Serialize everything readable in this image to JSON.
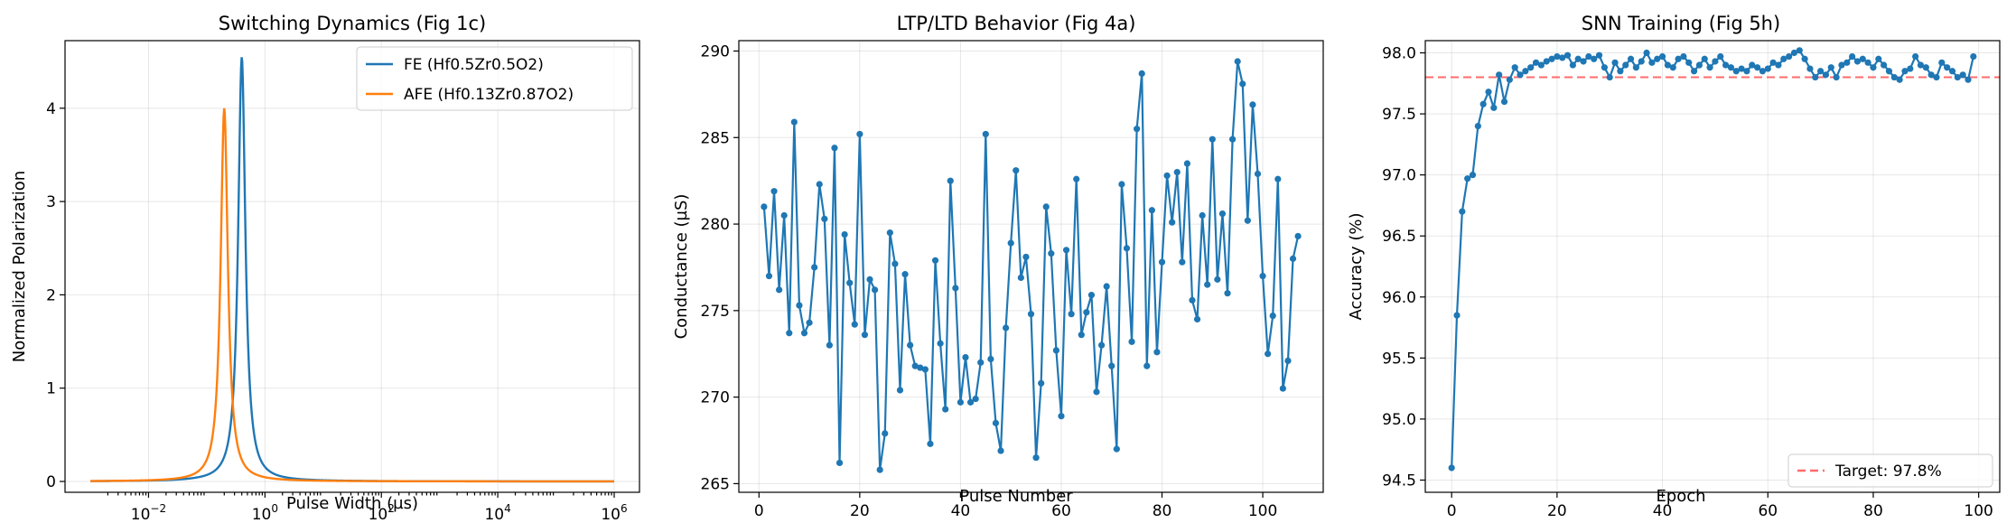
{
  "colors": {
    "fe": "#1f77b4",
    "afe": "#ff7f0e",
    "target": "#ff6b6b",
    "text": "#000000"
  },
  "chart_data": [
    {
      "type": "line",
      "title": "Switching Dynamics (Fig 1c)",
      "xlabel": "Pulse Width (µs)",
      "ylabel": "Normalized Polarization",
      "xscale": "log",
      "xlim": [
        0.001,
        1000000
      ],
      "ylim": [
        0,
        4.55
      ],
      "xtick_bases": [
        "10",
        "10",
        "10",
        "10",
        "10"
      ],
      "xtick_exps": [
        "−2",
        "0",
        "2",
        "4",
        "6"
      ],
      "yticks": [
        "0",
        "1",
        "2",
        "3",
        "4"
      ],
      "grid": true,
      "legend_position": "upper right",
      "series": [
        {
          "name": "FE (Hf0.5Zr0.5O2)",
          "color": "#1f77b4",
          "peak_x": 0.4,
          "peak_y": 4.55,
          "shape": "lorentzian-log"
        },
        {
          "name": "AFE (Hf0.13Zr0.87O2)",
          "color": "#ff7f0e",
          "peak_x": 0.2,
          "peak_y": 4.0,
          "shape": "lorentzian-log"
        }
      ]
    },
    {
      "type": "line",
      "title": "LTP/LTD Behavior (Fig 4a)",
      "xlabel": "Pulse Number",
      "ylabel": "Conductance (µS)",
      "xlim": [
        -4,
        112
      ],
      "ylim": [
        264.5,
        290.6
      ],
      "xticks": [
        "0",
        "20",
        "40",
        "60",
        "80",
        "100"
      ],
      "yticks": [
        "265",
        "270",
        "275",
        "280",
        "285",
        "290"
      ],
      "grid": true,
      "series": [
        {
          "name": "",
          "color": "#1f77b4",
          "x": [
            1,
            2,
            3,
            4,
            5,
            6,
            7,
            8,
            9,
            10,
            11,
            12,
            13,
            14,
            15,
            16,
            17,
            18,
            19,
            20,
            21,
            22,
            23,
            24,
            25,
            26,
            27,
            28,
            29,
            30,
            31,
            32,
            33,
            34,
            35,
            36,
            37,
            38,
            39,
            40,
            41,
            42,
            43,
            44,
            45,
            46,
            47,
            48,
            49,
            50,
            51,
            52,
            53,
            54,
            55,
            56,
            57,
            58,
            59,
            60,
            61,
            62,
            63,
            64,
            65,
            66,
            67,
            68,
            69,
            70,
            71,
            72,
            73,
            74,
            75,
            76,
            77,
            78,
            79,
            80,
            81,
            82,
            83,
            84,
            85,
            86,
            87,
            88,
            89,
            90,
            91,
            92,
            93,
            94,
            95,
            96,
            97,
            98,
            99,
            100,
            101,
            102,
            103,
            104,
            105,
            106,
            107
          ],
          "y": [
            281.0,
            277.0,
            281.9,
            276.2,
            280.5,
            273.7,
            285.9,
            275.3,
            273.7,
            274.3,
            277.5,
            282.3,
            280.3,
            273.0,
            284.4,
            266.2,
            279.4,
            276.6,
            274.2,
            285.2,
            273.6,
            276.8,
            276.2,
            265.8,
            267.9,
            279.5,
            277.7,
            270.4,
            277.1,
            273.0,
            271.8,
            271.7,
            271.6,
            267.3,
            277.9,
            273.1,
            269.3,
            282.5,
            276.3,
            269.7,
            272.3,
            269.7,
            269.9,
            272.0,
            285.2,
            272.2,
            268.5,
            266.9,
            274.0,
            278.9,
            283.1,
            276.9,
            278.1,
            274.8,
            266.5,
            270.8,
            281.0,
            278.3,
            272.7,
            268.9,
            278.5,
            274.8,
            282.6,
            273.6,
            274.9,
            275.9,
            270.3,
            273.0,
            276.4,
            271.8,
            267.0,
            282.3,
            278.6,
            273.2,
            285.5,
            288.7,
            271.8,
            280.8,
            272.6,
            277.8,
            282.8,
            280.1,
            283.0,
            277.8,
            283.5,
            275.6,
            274.5,
            280.5,
            276.5,
            284.9,
            276.8,
            280.6,
            276.0,
            284.9,
            289.4,
            288.1,
            280.2,
            286.9,
            282.9,
            277.0,
            272.5,
            274.7,
            282.6,
            270.5,
            272.1,
            278.0,
            279.3
          ]
        }
      ]
    },
    {
      "type": "line",
      "title": "SNN Training (Fig 5h)",
      "xlabel": "Epoch",
      "ylabel": "Accuracy (%)",
      "xlim": [
        -5,
        104
      ],
      "ylim": [
        94.4,
        98.1
      ],
      "xticks": [
        "0",
        "20",
        "40",
        "60",
        "80",
        "100"
      ],
      "yticks": [
        "94.5",
        "95.0",
        "95.5",
        "96.0",
        "96.5",
        "97.0",
        "97.5",
        "98.0"
      ],
      "grid": true,
      "legend_position": "lower right",
      "target": {
        "value": 97.8,
        "label": "Target: 97.8%"
      },
      "series": [
        {
          "name": "",
          "color": "#1f77b4",
          "x": [
            0,
            1,
            2,
            3,
            4,
            5,
            6,
            7,
            8,
            9,
            10,
            11,
            12,
            13,
            14,
            15,
            16,
            17,
            18,
            19,
            20,
            21,
            22,
            23,
            24,
            25,
            26,
            27,
            28,
            29,
            30,
            31,
            32,
            33,
            34,
            35,
            36,
            37,
            38,
            39,
            40,
            41,
            42,
            43,
            44,
            45,
            46,
            47,
            48,
            49,
            50,
            51,
            52,
            53,
            54,
            55,
            56,
            57,
            58,
            59,
            60,
            61,
            62,
            63,
            64,
            65,
            66,
            67,
            68,
            69,
            70,
            71,
            72,
            73,
            74,
            75,
            76,
            77,
            78,
            79,
            80,
            81,
            82,
            83,
            84,
            85,
            86,
            87,
            88,
            89,
            90,
            91,
            92,
            93,
            94,
            95,
            96,
            97,
            98,
            99
          ],
          "y": [
            94.6,
            95.85,
            96.7,
            96.97,
            97.0,
            97.4,
            97.58,
            97.68,
            97.55,
            97.82,
            97.6,
            97.78,
            97.88,
            97.82,
            97.85,
            97.88,
            97.92,
            97.9,
            97.93,
            97.95,
            97.97,
            97.96,
            97.98,
            97.9,
            97.95,
            97.93,
            97.97,
            97.95,
            97.98,
            97.88,
            97.8,
            97.92,
            97.85,
            97.9,
            97.95,
            97.88,
            97.93,
            98.0,
            97.92,
            97.95,
            97.97,
            97.9,
            97.88,
            97.95,
            97.97,
            97.92,
            97.85,
            97.9,
            97.95,
            97.88,
            97.93,
            97.97,
            97.9,
            97.88,
            97.85,
            97.87,
            97.85,
            97.9,
            97.88,
            97.85,
            97.87,
            97.92,
            97.9,
            97.95,
            97.97,
            98.0,
            98.02,
            97.95,
            97.87,
            97.8,
            97.85,
            97.82,
            97.88,
            97.8,
            97.9,
            97.92,
            97.97,
            97.93,
            97.95,
            97.92,
            97.88,
            97.95,
            97.9,
            97.85,
            97.8,
            97.78,
            97.85,
            97.87,
            97.97,
            97.9,
            97.88,
            97.82,
            97.8,
            97.92,
            97.88,
            97.85,
            97.8,
            97.82,
            97.78,
            97.97
          ]
        }
      ]
    }
  ]
}
